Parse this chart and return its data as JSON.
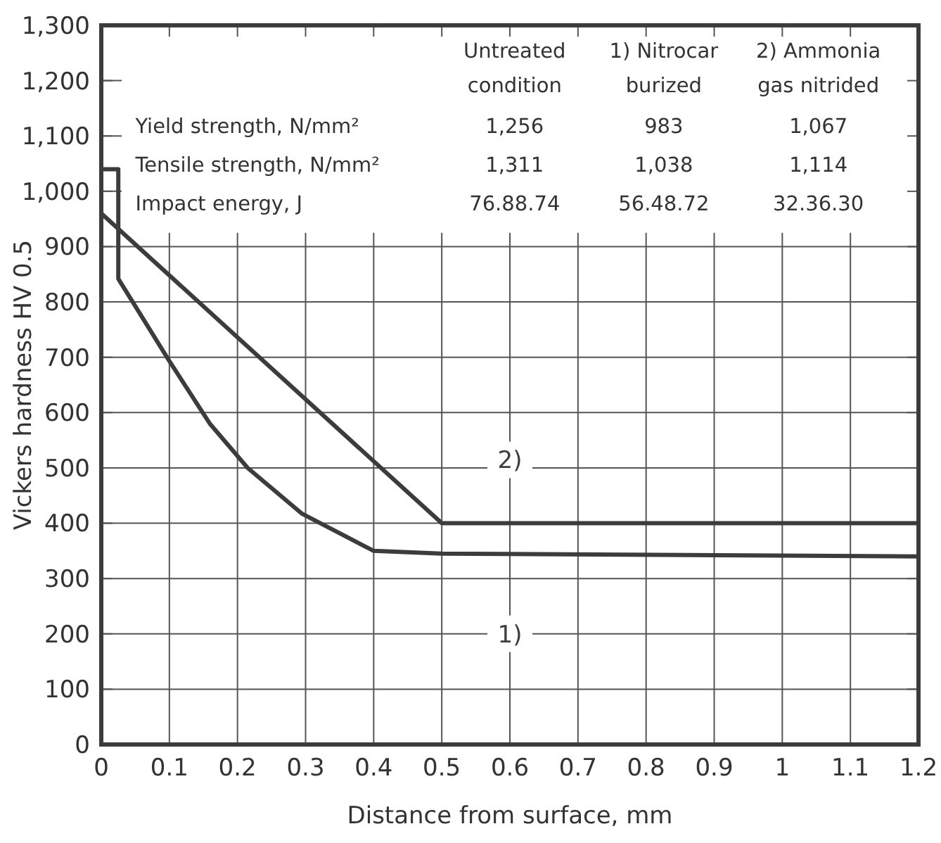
{
  "chart_data": {
    "type": "line",
    "xlabel": "Distance from surface, mm",
    "ylabel": "Vickers hardness HV 0.5",
    "xlim": [
      0,
      1.2
    ],
    "xticks": [
      0,
      0.1,
      0.2,
      0.3,
      0.4,
      0.5,
      0.6,
      0.7,
      0.8,
      0.9,
      1,
      1.1,
      1.2
    ],
    "ylim": [
      0,
      1300
    ],
    "yticks": [
      0,
      100,
      200,
      300,
      400,
      500,
      600,
      700,
      800,
      900,
      {
        "value": 1000,
        "label": "1,000"
      },
      {
        "value": 1100,
        "label": "1,100"
      },
      {
        "value": 1200,
        "label": "1,200"
      },
      {
        "value": 1300,
        "label": "1,300"
      }
    ],
    "grid": true,
    "marker": "none",
    "line_style": "solid",
    "series": [
      {
        "name": "1)",
        "color": "#3c3c3c",
        "x": [
          0,
          0.025,
          0.025,
          0.1,
          0.16,
          0.215,
          0.295,
          0.4,
          0.5,
          1.2
        ],
        "values": [
          1040,
          1040,
          842,
          693,
          579,
          500,
          417,
          350,
          345,
          340
        ]
      },
      {
        "name": "2)",
        "color": "#3c3c3c",
        "x": [
          0,
          0.5,
          1.2
        ],
        "values": [
          960,
          400,
          400
        ]
      }
    ],
    "annotations": [
      "Untreated",
      "condition",
      "1) Nitrocar",
      "burized",
      "2) Ammonia",
      "gas nitrided",
      "Yield strength, N/mm²",
      "1,256",
      "983",
      "1,067",
      "Tensile strength, N/mm²",
      "1,311",
      "1,038",
      "1,114",
      "Impact energy, J",
      "76.88.74",
      "56.48.72",
      "32.36.30"
    ]
  }
}
